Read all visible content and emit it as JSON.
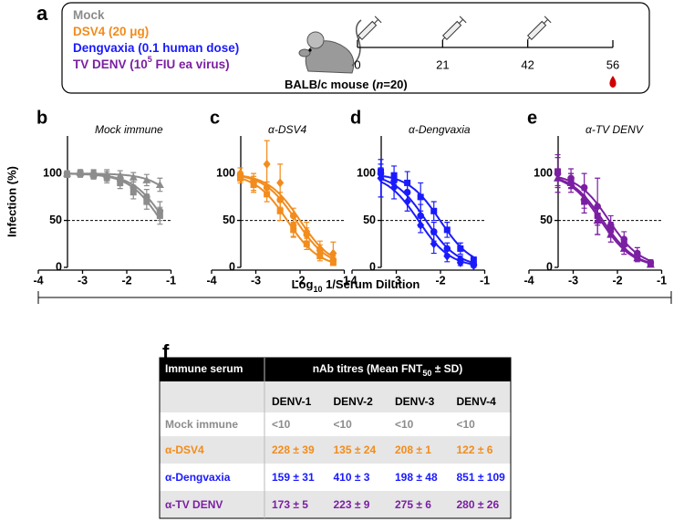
{
  "panel_a": {
    "label": "a",
    "groups": [
      {
        "parts": [
          "Mock"
        ],
        "color": "#8c8c8c"
      },
      {
        "parts": [
          "DSV4 (20 μg)"
        ],
        "color": "#f28c1c"
      },
      {
        "parts": [
          "Dengvaxia (0.1 human dose)"
        ],
        "color": "#1a1aff"
      },
      {
        "parts": [
          "TV DENV (10",
          "5",
          " FIU ea virus)"
        ],
        "color": "#7b1fa2"
      }
    ],
    "mouse": [
      "BALB/c mouse (",
      "n",
      "=20)"
    ],
    "timeline": [
      0,
      21,
      42,
      56
    ]
  },
  "shared_x_label": [
    "Log",
    "10",
    " 1/Serum Dilution"
  ],
  "chart_data": [
    {
      "type": "line",
      "label": "b",
      "title": "Mock immune",
      "ylabel": "Infection (%)",
      "x": [
        -3.35,
        -3.05,
        -2.75,
        -2.45,
        -2.15,
        -1.85,
        -1.55,
        -1.25
      ],
      "xlim": [
        -4,
        -1
      ],
      "xticks": [
        -4,
        -3,
        -2,
        -1
      ],
      "ylim": [
        0,
        140
      ],
      "yticks": [
        0,
        50,
        100
      ],
      "reference_line": 50,
      "series": [
        {
          "marker": "circle",
          "color": "#8c8c8c",
          "values": [
            100,
            100,
            99,
            97,
            93,
            85,
            75,
            60
          ],
          "errors": [
            3,
            3,
            4,
            5,
            6,
            6,
            8,
            10
          ]
        },
        {
          "marker": "square",
          "color": "#8c8c8c",
          "values": [
            99,
            100,
            98,
            96,
            90,
            80,
            70,
            55
          ],
          "errors": [
            3,
            4,
            4,
            6,
            6,
            7,
            8,
            9
          ]
        },
        {
          "marker": "triangle",
          "color": "#8c8c8c",
          "values": [
            100,
            101,
            100,
            99,
            98,
            96,
            93,
            88
          ],
          "errors": [
            2,
            3,
            4,
            5,
            5,
            5,
            6,
            7
          ]
        }
      ]
    },
    {
      "type": "line",
      "label": "c",
      "title": "α-DSV4",
      "x": [
        -3.35,
        -3.05,
        -2.75,
        -2.45,
        -2.15,
        -1.85,
        -1.55,
        -1.25
      ],
      "xlim": [
        -4,
        -1
      ],
      "xticks": [
        -4,
        -3,
        -2,
        -1
      ],
      "ylim": [
        0,
        140
      ],
      "yticks": [
        0,
        50,
        100
      ],
      "reference_line": 50,
      "series": [
        {
          "marker": "circle",
          "color": "#f28c1c",
          "values": [
            98,
            92,
            85,
            72,
            55,
            35,
            18,
            8
          ],
          "errors": [
            4,
            5,
            6,
            8,
            8,
            7,
            6,
            4
          ]
        },
        {
          "marker": "square",
          "color": "#f28c1c",
          "values": [
            95,
            88,
            78,
            60,
            40,
            25,
            12,
            5
          ],
          "errors": [
            5,
            6,
            8,
            10,
            8,
            6,
            5,
            3
          ]
        },
        {
          "marker": "diamond",
          "color": "#f28c1c",
          "values": [
            100,
            90,
            110,
            90,
            45,
            38,
            20,
            15
          ],
          "errors": [
            6,
            10,
            25,
            20,
            12,
            10,
            8,
            12
          ]
        }
      ]
    },
    {
      "type": "line",
      "label": "d",
      "title": "α-Dengvaxia",
      "x": [
        -3.35,
        -3.05,
        -2.75,
        -2.45,
        -2.15,
        -1.85,
        -1.55,
        -1.25
      ],
      "xlim": [
        -4,
        -1
      ],
      "xticks": [
        -4,
        -3,
        -2,
        -1
      ],
      "ylim": [
        0,
        140
      ],
      "yticks": [
        0,
        50,
        100
      ],
      "reference_line": 50,
      "series": [
        {
          "marker": "circle",
          "color": "#1a1aff",
          "values": [
            100,
            92,
            80,
            55,
            38,
            20,
            8,
            3
          ],
          "errors": [
            6,
            8,
            10,
            12,
            10,
            6,
            4,
            2
          ]
        },
        {
          "marker": "square",
          "color": "#1a1aff",
          "values": [
            102,
            98,
            90,
            75,
            60,
            40,
            20,
            8
          ],
          "errors": [
            8,
            10,
            12,
            15,
            10,
            8,
            6,
            3
          ]
        },
        {
          "marker": "diamond",
          "color": "#1a1aff",
          "values": [
            95,
            85,
            70,
            45,
            25,
            12,
            5,
            2
          ],
          "errors": [
            20,
            12,
            10,
            8,
            10,
            6,
            3,
            2
          ]
        }
      ]
    },
    {
      "type": "line",
      "label": "e",
      "title": "α-TV DENV",
      "x": [
        -3.35,
        -3.05,
        -2.75,
        -2.45,
        -2.15,
        -1.85,
        -1.55,
        -1.25
      ],
      "xlim": [
        -4,
        -1
      ],
      "xticks": [
        -4,
        -3,
        -2,
        -1
      ],
      "ylim": [
        0,
        140
      ],
      "yticks": [
        0,
        50,
        100
      ],
      "reference_line": 50,
      "series": [
        {
          "marker": "circle",
          "color": "#7b1fa2",
          "values": [
            100,
            95,
            85,
            65,
            45,
            30,
            15,
            5
          ],
          "errors": [
            20,
            10,
            15,
            30,
            10,
            8,
            6,
            3
          ]
        },
        {
          "marker": "square",
          "color": "#7b1fa2",
          "values": [
            102,
            92,
            70,
            55,
            40,
            25,
            12,
            4
          ],
          "errors": [
            15,
            8,
            12,
            10,
            8,
            6,
            5,
            3
          ]
        },
        {
          "marker": "triangle",
          "color": "#7b1fa2",
          "values": [
            95,
            90,
            75,
            50,
            35,
            20,
            10,
            3
          ],
          "errors": [
            10,
            10,
            12,
            15,
            8,
            6,
            4,
            2
          ]
        }
      ]
    }
  ],
  "table": {
    "label": "f",
    "header": [
      "Immune serum",
      [
        "nAb titres (Mean FNT",
        "50",
        " ± SD)"
      ]
    ],
    "columns": [
      "DENV-1",
      "DENV-2",
      "DENV-3",
      "DENV-4"
    ],
    "rows": [
      {
        "color": "#8c8c8c",
        "cells": [
          "Mock immune",
          "<10",
          "<10",
          "<10",
          "<10"
        ]
      },
      {
        "color": "#f28c1c",
        "cells": [
          "α-DSV4",
          "228 ± 39",
          "135 ± 24",
          "208 ± 1",
          "122 ± 6"
        ]
      },
      {
        "color": "#1a1aff",
        "cells": [
          "α-Dengvaxia",
          "159 ± 31",
          "410 ± 3",
          "198 ± 48",
          "851 ± 109"
        ]
      },
      {
        "color": "#7b1fa2",
        "cells": [
          "α-TV DENV",
          "173 ± 5",
          "223 ± 9",
          "275 ± 6",
          "280 ± 26"
        ]
      }
    ]
  }
}
